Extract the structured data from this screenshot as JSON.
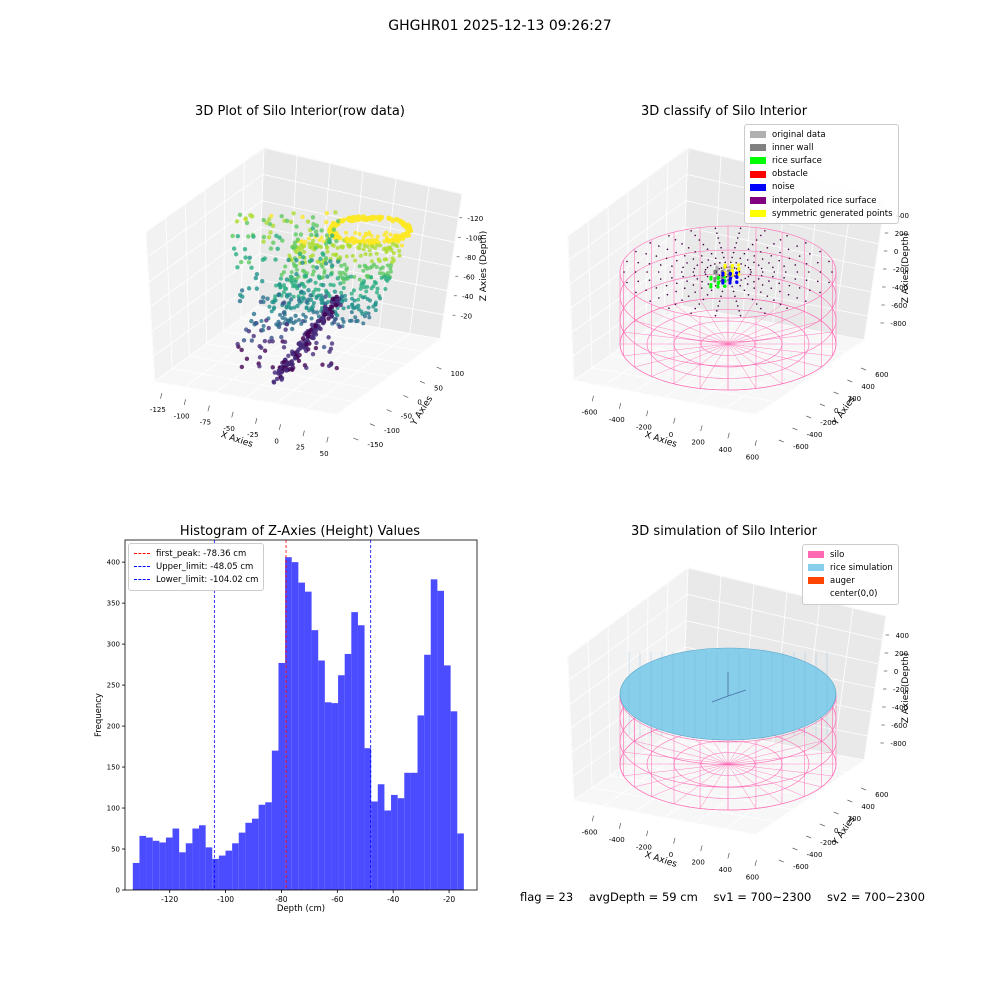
{
  "figure": {
    "suptitle": "GHGHR01 2025-12-13 09:26:27"
  },
  "status": {
    "flag": "flag = 23",
    "avg_depth": "avgDepth = 59 cm",
    "sv1": "sv1 = 700~2300",
    "sv2": "sv2 = 700~2300"
  },
  "colors": {
    "hist_bar": "#4b4bff",
    "peak_line": "#ff0000",
    "limit_line": "#0000ff",
    "silo_wire": "#ff69b4",
    "rice_fill": "#87ceeb",
    "viridis_low": "#440154",
    "viridis_high": "#fde725"
  },
  "chart_data": [
    {
      "id": "raw-3d",
      "type": "scatter",
      "title": "3D Plot of Silo Interior(row data)",
      "xlabel": "X Axies",
      "ylabel": "Y Axies",
      "zlabel": "Z Axies (Depth)",
      "x_ticks": [
        "-125",
        "-100",
        "-75",
        "-50",
        "-25",
        "0",
        "25",
        "50"
      ],
      "y_ticks": [
        "-150",
        "-100",
        "-50",
        "0",
        "50",
        "100"
      ],
      "z_ticks": [
        "-120",
        "-100",
        "-80",
        "-60",
        "-40",
        "-20"
      ],
      "xlim": [
        -135,
        55
      ],
      "ylim": [
        -160,
        110
      ],
      "zlim": [
        -135,
        -15
      ],
      "colormap": "viridis"
    },
    {
      "id": "classify-3d",
      "type": "scatter",
      "title": "3D classify of Silo Interior",
      "xlabel": "X Axies",
      "ylabel": "Y Axies",
      "zlabel": "Z Axies (Depth)",
      "x_ticks": [
        "-600",
        "-400",
        "-200",
        "0",
        "200",
        "400",
        "600"
      ],
      "y_ticks": [
        "-600",
        "-400",
        "-200",
        "0",
        "200",
        "400",
        "600"
      ],
      "z_ticks": [
        "-800",
        "-600",
        "-400",
        "-200",
        "0",
        "200",
        "400"
      ],
      "legend": [
        {
          "label": "original data",
          "color": "#b0b0b0"
        },
        {
          "label": "inner wall",
          "color": "#808080"
        },
        {
          "label": "rice surface",
          "color": "#00ff00"
        },
        {
          "label": "obstacle",
          "color": "#ff0000"
        },
        {
          "label": "noise",
          "color": "#0000ff"
        },
        {
          "label": "interpolated rice surface",
          "color": "#800080"
        },
        {
          "label": "symmetric generated points",
          "color": "#ffff00"
        }
      ]
    },
    {
      "id": "histogram",
      "type": "bar",
      "title": "Histogram of Z-Axies (Height) Values",
      "xlabel": "Depth (cm)",
      "ylabel": "Frequency",
      "xlim": [
        -136,
        -10
      ],
      "ylim": [
        0,
        427
      ],
      "x_ticks": [
        -120,
        -100,
        -80,
        -60,
        -40,
        -20
      ],
      "y_ticks": [
        0,
        50,
        100,
        150,
        200,
        250,
        300,
        350,
        400
      ],
      "bin_start": -133.2,
      "bin_width": 2.37,
      "values": [
        33,
        66,
        64,
        60,
        58,
        64,
        75,
        46,
        57,
        75,
        79,
        52,
        38,
        42,
        48,
        57,
        70,
        82,
        87,
        104,
        107,
        170,
        277,
        406,
        400,
        375,
        364,
        317,
        280,
        229,
        228,
        262,
        288,
        339,
        323,
        173,
        108,
        129,
        97,
        116,
        112,
        143,
        143,
        213,
        287,
        379,
        365,
        274,
        218,
        69
      ],
      "vlines": [
        {
          "label": "first_peak: -78.36 cm",
          "x": -78.36,
          "color": "#ff0000"
        },
        {
          "label": "Upper_limit: -48.05 cm",
          "x": -48.05,
          "color": "#0000ff"
        },
        {
          "label": "Lower_limit: -104.02 cm",
          "x": -104.02,
          "color": "#0000ff"
        }
      ]
    },
    {
      "id": "simulation-3d",
      "type": "scatter",
      "title": "3D simulation of Silo Interior",
      "xlabel": "X Axies",
      "ylabel": "Y Axies",
      "zlabel": "Z Axies (Depth)",
      "x_ticks": [
        "-600",
        "-400",
        "-200",
        "0",
        "200",
        "400",
        "600"
      ],
      "y_ticks": [
        "-600",
        "-400",
        "-200",
        "0",
        "200",
        "400",
        "600"
      ],
      "z_ticks": [
        "-800",
        "-600",
        "-400",
        "-200",
        "0",
        "200",
        "400"
      ],
      "legend": [
        {
          "label": "silo",
          "color": "#ff69b4"
        },
        {
          "label": "rice simulation",
          "color": "#87ceeb"
        },
        {
          "label": "auger",
          "color": "#ff4500"
        },
        {
          "label": "center(0,0)",
          "color": "#ffffff"
        }
      ]
    }
  ]
}
